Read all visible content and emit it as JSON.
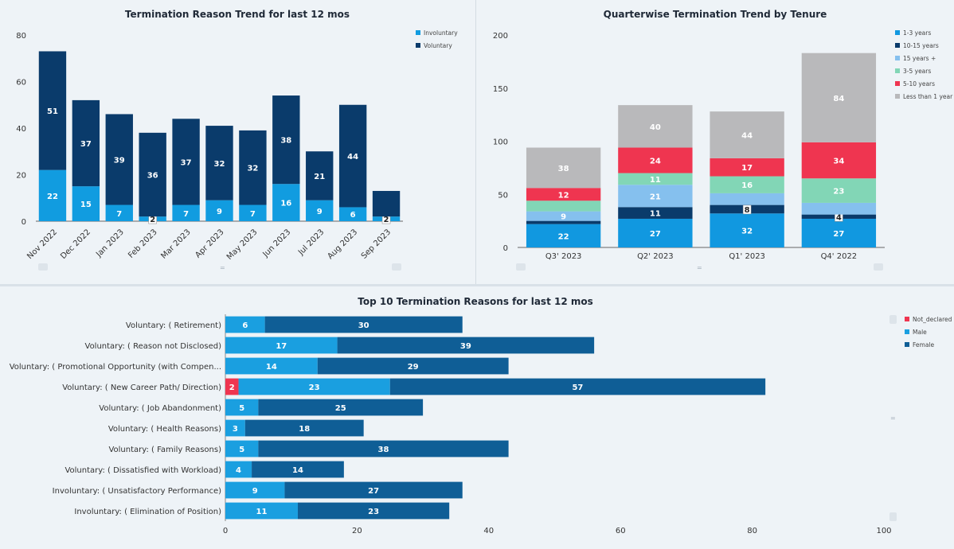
{
  "colors": {
    "voluntary": "#0a3b6b",
    "involuntary": "#119ce0",
    "t1_3": "#1198e0",
    "t10_15": "#0a3b6b",
    "t15p": "#85c0ee",
    "t3_5": "#82d6b6",
    "t5_10": "#ef3550",
    "tlt1": "#b9b9bb",
    "not_declared": "#ef3550",
    "male": "#1a9fe0",
    "female": "#0f5e96"
  },
  "chart_data": [
    {
      "type": "bar",
      "stacked": true,
      "title": "Termination Reason Trend for last 12 mos",
      "categories": [
        "Nov 2022",
        "Dec 2022",
        "Jan 2023",
        "Feb 2023",
        "Mar 2023",
        "Apr 2023",
        "May 2023",
        "Jun 2023",
        "Jul 2023",
        "Aug 2023",
        "Sep 2023"
      ],
      "series": [
        {
          "name": "Involuntary",
          "color_key": "involuntary",
          "values": [
            22,
            15,
            7,
            2,
            7,
            9,
            7,
            16,
            9,
            6,
            2
          ]
        },
        {
          "name": "Voluntary",
          "color_key": "voluntary",
          "values": [
            51,
            37,
            39,
            36,
            37,
            32,
            32,
            38,
            21,
            44,
            11
          ]
        }
      ],
      "hidden_labels": {
        "Voluntary": [
          10
        ]
      },
      "boxed_labels": {
        "Involuntary": [
          3,
          10
        ]
      },
      "ylim": [
        0,
        80
      ],
      "yticks": [
        0,
        20,
        40,
        60,
        80
      ],
      "legend_position": "top-right"
    },
    {
      "type": "bar",
      "stacked": true,
      "title": "Quarterwise Termination Trend by Tenure",
      "categories": [
        "Q3' 2023",
        "Q2' 2023",
        "Q1' 2023",
        "Q4' 2022"
      ],
      "series": [
        {
          "name": "1-3 years",
          "color_key": "t1_3",
          "values": [
            22,
            27,
            32,
            27
          ]
        },
        {
          "name": "10-15 years",
          "color_key": "t10_15",
          "values": [
            3,
            11,
            8,
            4
          ]
        },
        {
          "name": "15 years +",
          "color_key": "t15p",
          "values": [
            9,
            21,
            11,
            11
          ]
        },
        {
          "name": "3-5 years",
          "color_key": "t3_5",
          "values": [
            10,
            11,
            16,
            23
          ]
        },
        {
          "name": "5-10 years",
          "color_key": "t5_10",
          "values": [
            12,
            24,
            17,
            34
          ]
        },
        {
          "name": "Less than 1 year",
          "color_key": "tlt1",
          "values": [
            38,
            40,
            44,
            84
          ]
        }
      ],
      "hidden_labels": {
        "10-15 years": [
          0
        ],
        "15 years +": [
          2,
          3
        ],
        "3-5 years": [
          0
        ]
      },
      "boxed_labels": {
        "10-15 years": [
          2,
          3
        ]
      },
      "ylim": [
        0,
        200
      ],
      "yticks": [
        0,
        50,
        100,
        150,
        200
      ],
      "legend_position": "top-right"
    },
    {
      "type": "bar",
      "orientation": "horizontal",
      "stacked": true,
      "title": "Top 10 Termination Reasons for last 12 mos",
      "categories": [
        "Voluntary: ( Retirement)",
        "Voluntary: ( Reason not Disclosed)",
        "Voluntary: ( Promotional Opportunity (with Compen...",
        "Voluntary: ( New Career Path/ Direction)",
        "Voluntary: ( Job Abandonment)",
        "Voluntary: ( Health Reasons)",
        "Voluntary: ( Family Reasons)",
        "Voluntary: ( Dissatisfied with Workload)",
        "Involuntary: ( Unsatisfactory Performance)",
        "Involuntary: ( Elimination of Position)"
      ],
      "series": [
        {
          "name": "Not_declared",
          "color_key": "not_declared",
          "values": [
            0,
            0,
            0,
            2,
            0,
            0,
            0,
            0,
            0,
            0
          ]
        },
        {
          "name": "Male",
          "color_key": "male",
          "values": [
            6,
            17,
            14,
            23,
            5,
            3,
            5,
            4,
            9,
            11
          ]
        },
        {
          "name": "Female",
          "color_key": "female",
          "values": [
            30,
            39,
            29,
            57,
            25,
            18,
            38,
            14,
            27,
            23
          ]
        }
      ],
      "xlim": [
        0,
        100
      ],
      "xticks": [
        0,
        20,
        40,
        60,
        80,
        100
      ],
      "legend_position": "top-right"
    }
  ]
}
